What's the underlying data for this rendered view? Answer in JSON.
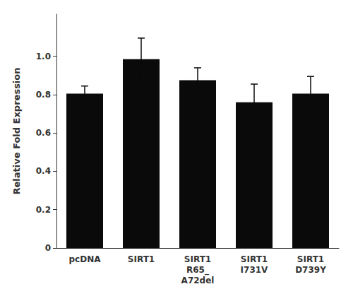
{
  "chart_data": {
    "type": "bar",
    "categories": [
      "pcDNA",
      "SIRT1",
      "SIRT1\nR65_\nA72del",
      "SIRT1\nI731V",
      "SIRT1\nD739Y"
    ],
    "values": [
      0.805,
      0.985,
      0.875,
      0.76,
      0.805
    ],
    "errors": [
      0.04,
      0.11,
      0.065,
      0.095,
      0.09
    ],
    "color": "#0a0a0a",
    "ylabel": "Relative Fold Expression",
    "ylim": [
      0,
      1.22
    ],
    "yticks": [
      0,
      0.2,
      0.4,
      0.6,
      0.8,
      {
        "value": 1.0,
        "label": "1.0"
      }
    ],
    "grid": false
  }
}
